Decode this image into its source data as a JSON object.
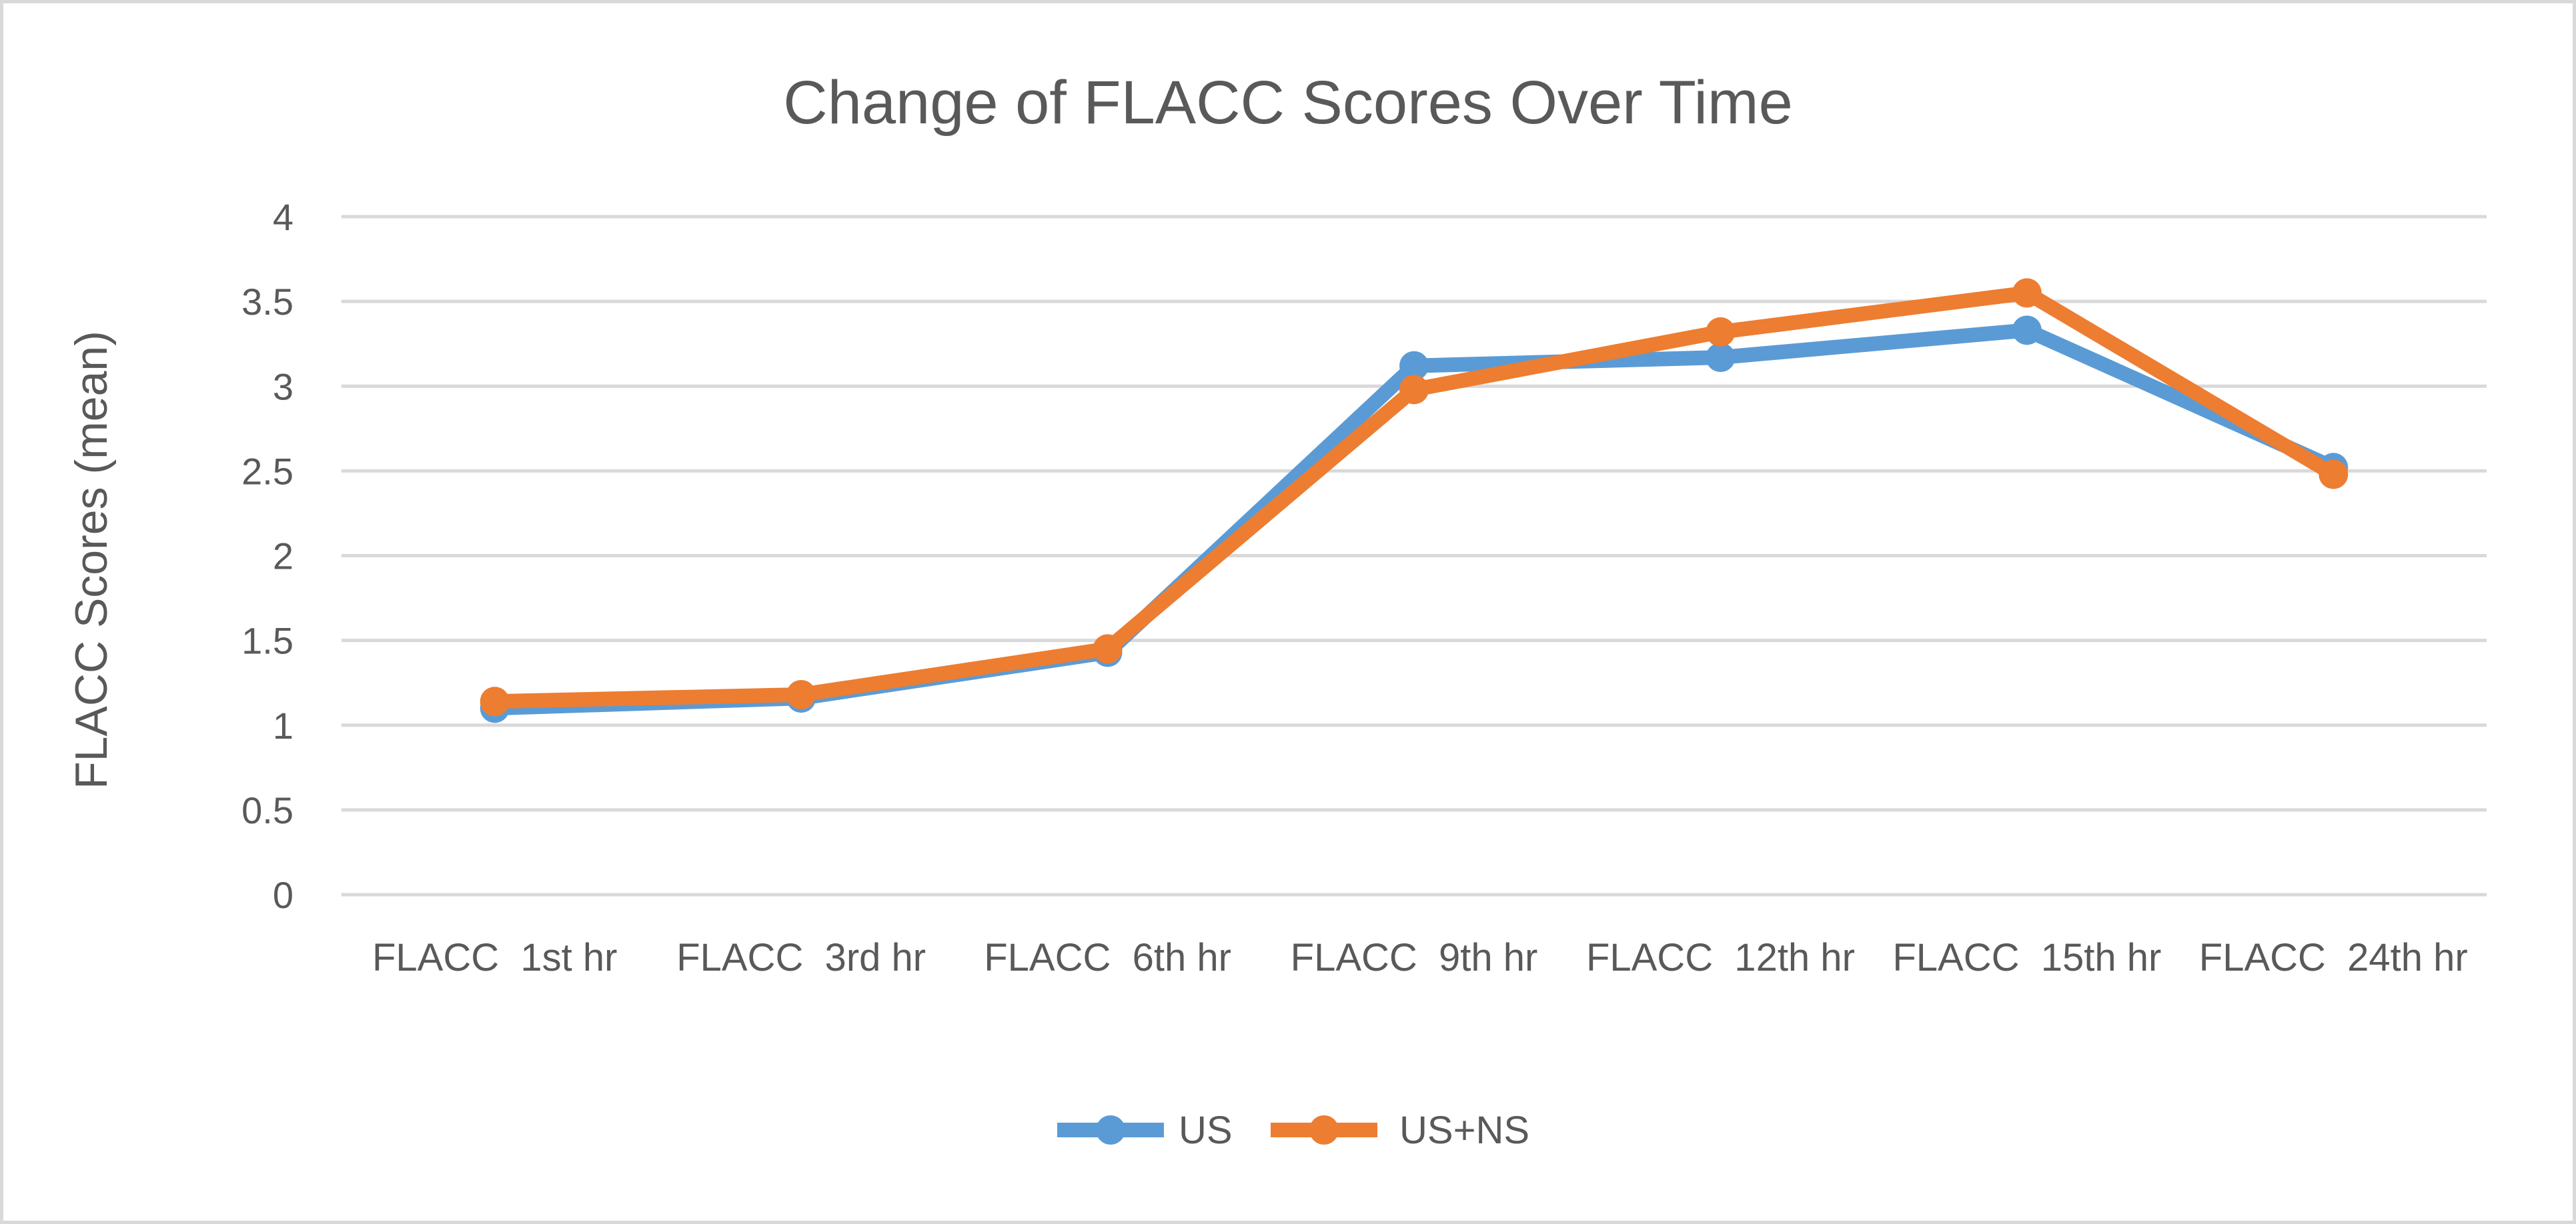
{
  "chart_data": {
    "type": "line",
    "title": "Change of FLACC Scores Over Time",
    "xlabel": "",
    "ylabel": "FLACC Scores (mean)",
    "ylim": [
      0,
      4
    ],
    "yticks": [
      0,
      0.5,
      1,
      1.5,
      2,
      2.5,
      3,
      3.5,
      4
    ],
    "ytick_labels": [
      "0",
      "0.5",
      "1",
      "1.5",
      "2",
      "2.5",
      "3",
      "3.5",
      "4"
    ],
    "categories": [
      "FLACC 1st hr",
      "FLACC 3rd hr",
      "FLACC 6th hr",
      "FLACC 9th hr",
      "FLACC 12th hr",
      "FLACC 15th hr",
      "FLACC 24th hr"
    ],
    "grid": "horizontal",
    "legend_position": "bottom",
    "series": [
      {
        "name": "US",
        "color": "#5b9bd5",
        "values": [
          1.1,
          1.16,
          1.43,
          3.12,
          3.17,
          3.33,
          2.52
        ]
      },
      {
        "name": "US+NS",
        "color": "#ed7d31",
        "values": [
          1.14,
          1.18,
          1.45,
          2.98,
          3.32,
          3.55,
          2.48
        ]
      }
    ]
  }
}
